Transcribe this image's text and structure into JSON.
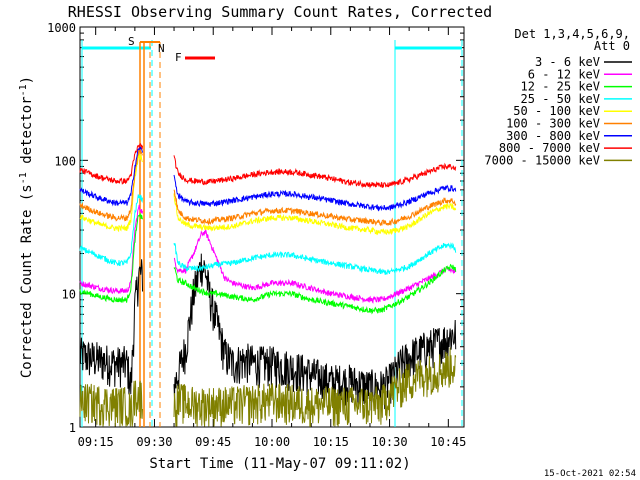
{
  "chart_data": {
    "type": "line",
    "title": "RHESSI Observing Summary Count Rates, Corrected",
    "xlabel": "Start Time (11-May-07 09:11:02)",
    "ylabel": "Corrected Count Rate (s⁻¹ detector⁻¹)",
    "ylabel_main": "Corrected Count Rate (s",
    "ylabel_exp1": "-1",
    "ylabel_mid": " detector",
    "ylabel_exp2": "-1",
    "ylabel_end": ")",
    "yscale": "log",
    "ylim": [
      1,
      1000
    ],
    "xlim": [
      "09:11",
      "10:49"
    ],
    "x_tick_labels": [
      "09:15",
      "09:30",
      "09:45",
      "10:00",
      "10:15",
      "10:30",
      "10:45"
    ],
    "y_tick_labels": [
      "1",
      "10",
      "100",
      "1000"
    ],
    "legend_header": [
      "Det 1,3,4,5,6,9,",
      "Att 0"
    ],
    "legend_position": "right",
    "series": [
      {
        "name": "3 - 6 keV",
        "color": "#000000",
        "x": [
          "09:11",
          "09:20",
          "09:23",
          "09:24",
          "09:25",
          "09:26",
          "09:27",
          "09:35",
          "09:36",
          "09:38",
          "09:40",
          "09:42",
          "09:43",
          "09:44",
          "09:46",
          "09:48",
          "09:50",
          "09:53",
          "09:56",
          "10:00",
          "10:05",
          "10:10",
          "10:15",
          "10:20",
          "10:25",
          "10:28",
          "10:30",
          "10:33",
          "10:36",
          "10:40",
          "10:44",
          "10:46",
          "10:47"
        ],
        "y": [
          3.5,
          3.0,
          3.0,
          2.0,
          8.0,
          14.0,
          14.0,
          2.0,
          2.5,
          4.0,
          10.0,
          17.0,
          15.0,
          10.0,
          6.0,
          3.5,
          3.0,
          3.2,
          3.0,
          3.0,
          2.8,
          2.5,
          2.2,
          2.2,
          2.0,
          2.0,
          2.2,
          3.0,
          3.5,
          4.0,
          4.5,
          5.0,
          5.0
        ]
      },
      {
        "name": "6 - 12 keV",
        "color": "#ff00ff",
        "x": [
          "09:11",
          "09:16",
          "09:20",
          "09:23",
          "09:24",
          "09:25",
          "09:26",
          "09:35",
          "09:36",
          "09:38",
          "09:40",
          "09:42",
          "09:43",
          "09:44",
          "09:46",
          "09:48",
          "09:50",
          "09:55",
          "10:00",
          "10:05",
          "10:10",
          "10:15",
          "10:20",
          "10:25",
          "10:28",
          "10:30",
          "10:35",
          "10:40",
          "10:44",
          "10:46",
          "10:47"
        ],
        "y": [
          12,
          11,
          10.5,
          10.5,
          12,
          30,
          45,
          18,
          15,
          15,
          20,
          28,
          29,
          25,
          18,
          13,
          12,
          11,
          12,
          12,
          11,
          10,
          9.5,
          9.0,
          9.0,
          9.5,
          11,
          13,
          15,
          15,
          14
        ]
      },
      {
        "name": "12 - 25 keV",
        "color": "#00ff00",
        "x": [
          "09:11",
          "09:16",
          "09:20",
          "09:23",
          "09:24",
          "09:25",
          "09:26",
          "09:35",
          "09:36",
          "09:38",
          "09:40",
          "09:42",
          "09:44",
          "09:46",
          "09:50",
          "09:55",
          "10:00",
          "10:05",
          "10:10",
          "10:15",
          "10:20",
          "10:25",
          "10:28",
          "10:30",
          "10:35",
          "10:40",
          "10:44",
          "10:46",
          "10:47"
        ],
        "y": [
          10.5,
          9.5,
          9.0,
          9.0,
          11,
          25,
          40,
          16,
          12.5,
          12,
          11,
          10.5,
          10,
          10,
          9.5,
          9.0,
          10.0,
          10.0,
          9.0,
          8.5,
          8.0,
          7.5,
          7.5,
          8.0,
          9.5,
          12,
          15,
          16,
          15
        ]
      },
      {
        "name": "25 - 50 keV",
        "color": "#00ffff",
        "x": [
          "09:11",
          "09:16",
          "09:20",
          "09:23",
          "09:24",
          "09:25",
          "09:26",
          "09:35",
          "09:36",
          "09:38",
          "09:40",
          "09:42",
          "09:44",
          "09:46",
          "09:50",
          "09:55",
          "10:00",
          "10:05",
          "10:10",
          "10:15",
          "10:20",
          "10:25",
          "10:28",
          "10:30",
          "10:35",
          "10:40",
          "10:44",
          "10:46",
          "10:47"
        ],
        "y": [
          22,
          19,
          17,
          17,
          20,
          40,
          55,
          25,
          17,
          15.5,
          15.5,
          15.5,
          16,
          16.5,
          17,
          18.5,
          19.5,
          19.5,
          18,
          17,
          16,
          15,
          14.5,
          14.5,
          16,
          20,
          23,
          23,
          21
        ]
      },
      {
        "name": "50 - 100 keV",
        "color": "#ffff00",
        "x": [
          "09:11",
          "09:16",
          "09:20",
          "09:23",
          "09:24",
          "09:25",
          "09:26",
          "09:35",
          "09:36",
          "09:38",
          "09:40",
          "09:44",
          "09:50",
          "09:55",
          "10:00",
          "10:05",
          "10:10",
          "10:15",
          "10:20",
          "10:25",
          "10:28",
          "10:30",
          "10:35",
          "10:40",
          "10:44",
          "10:46",
          "10:47"
        ],
        "y": [
          38,
          33,
          31,
          31,
          36,
          75,
          110,
          55,
          37,
          33,
          32,
          31,
          32,
          35,
          37,
          37,
          35,
          33,
          31,
          30,
          29,
          29,
          32,
          40,
          45,
          45,
          42
        ]
      },
      {
        "name": "100 - 300 keV",
        "color": "#ff8000",
        "x": [
          "09:11",
          "09:16",
          "09:20",
          "09:23",
          "09:24",
          "09:25",
          "09:26",
          "09:35",
          "09:36",
          "09:38",
          "09:40",
          "09:44",
          "09:50",
          "09:55",
          "10:00",
          "10:05",
          "10:10",
          "10:15",
          "10:20",
          "10:25",
          "10:28",
          "10:30",
          "10:35",
          "10:40",
          "10:44",
          "10:46",
          "10:47"
        ],
        "y": [
          46,
          40,
          37,
          37,
          43,
          80,
          120,
          62,
          42,
          37,
          36,
          35,
          37,
          40,
          42,
          42,
          40,
          38,
          36,
          35,
          34,
          34,
          38,
          45,
          50,
          50,
          47
        ]
      },
      {
        "name": "300 - 800 keV",
        "color": "#0000ff",
        "x": [
          "09:11",
          "09:16",
          "09:20",
          "09:23",
          "09:24",
          "09:25",
          "09:26",
          "09:35",
          "09:36",
          "09:38",
          "09:40",
          "09:44",
          "09:50",
          "09:55",
          "10:00",
          "10:05",
          "10:10",
          "10:15",
          "10:20",
          "10:25",
          "10:28",
          "10:30",
          "10:35",
          "10:40",
          "10:44",
          "10:46",
          "10:47"
        ],
        "y": [
          60,
          52,
          48,
          48,
          55,
          90,
          125,
          75,
          55,
          49,
          48,
          47,
          50,
          53,
          56,
          56,
          53,
          50,
          47,
          45,
          44,
          44,
          49,
          57,
          62,
          62,
          59
        ]
      },
      {
        "name": "800 - 7000 keV",
        "color": "#ff0000",
        "x": [
          "09:11",
          "09:16",
          "09:20",
          "09:23",
          "09:24",
          "09:25",
          "09:26",
          "09:35",
          "09:36",
          "09:38",
          "09:40",
          "09:44",
          "09:50",
          "09:55",
          "10:00",
          "10:05",
          "10:10",
          "10:15",
          "10:20",
          "10:25",
          "10:28",
          "10:30",
          "10:35",
          "10:40",
          "10:44",
          "10:46",
          "10:47"
        ],
        "y": [
          85,
          75,
          70,
          70,
          78,
          110,
          130,
          105,
          80,
          72,
          70,
          69,
          73,
          78,
          82,
          82,
          78,
          73,
          68,
          66,
          65,
          65,
          72,
          82,
          90,
          90,
          85
        ]
      },
      {
        "name": "7000 - 15000 keV",
        "color": "#808000",
        "x": [
          "09:11",
          "09:20",
          "09:23",
          "09:24",
          "09:25",
          "09:35",
          "09:36",
          "09:40",
          "09:44",
          "09:50",
          "10:00",
          "10:10",
          "10:20",
          "10:28",
          "10:30",
          "10:35",
          "10:40",
          "10:44",
          "10:46",
          "10:47"
        ],
        "y": [
          1.6,
          1.5,
          1.5,
          1.3,
          1.8,
          1.4,
          1.6,
          1.5,
          1.5,
          1.5,
          1.6,
          1.5,
          1.5,
          1.5,
          1.8,
          2.3,
          2.6,
          2.8,
          3.0,
          3.0
        ]
      }
    ],
    "annotations": [
      {
        "label": "S",
        "color": "#ff8000"
      },
      {
        "label": "N",
        "color": "#00ffff"
      },
      {
        "label": "F",
        "color": "#ff0000"
      }
    ],
    "timestamp": "15-Oct-2021 02:54"
  }
}
